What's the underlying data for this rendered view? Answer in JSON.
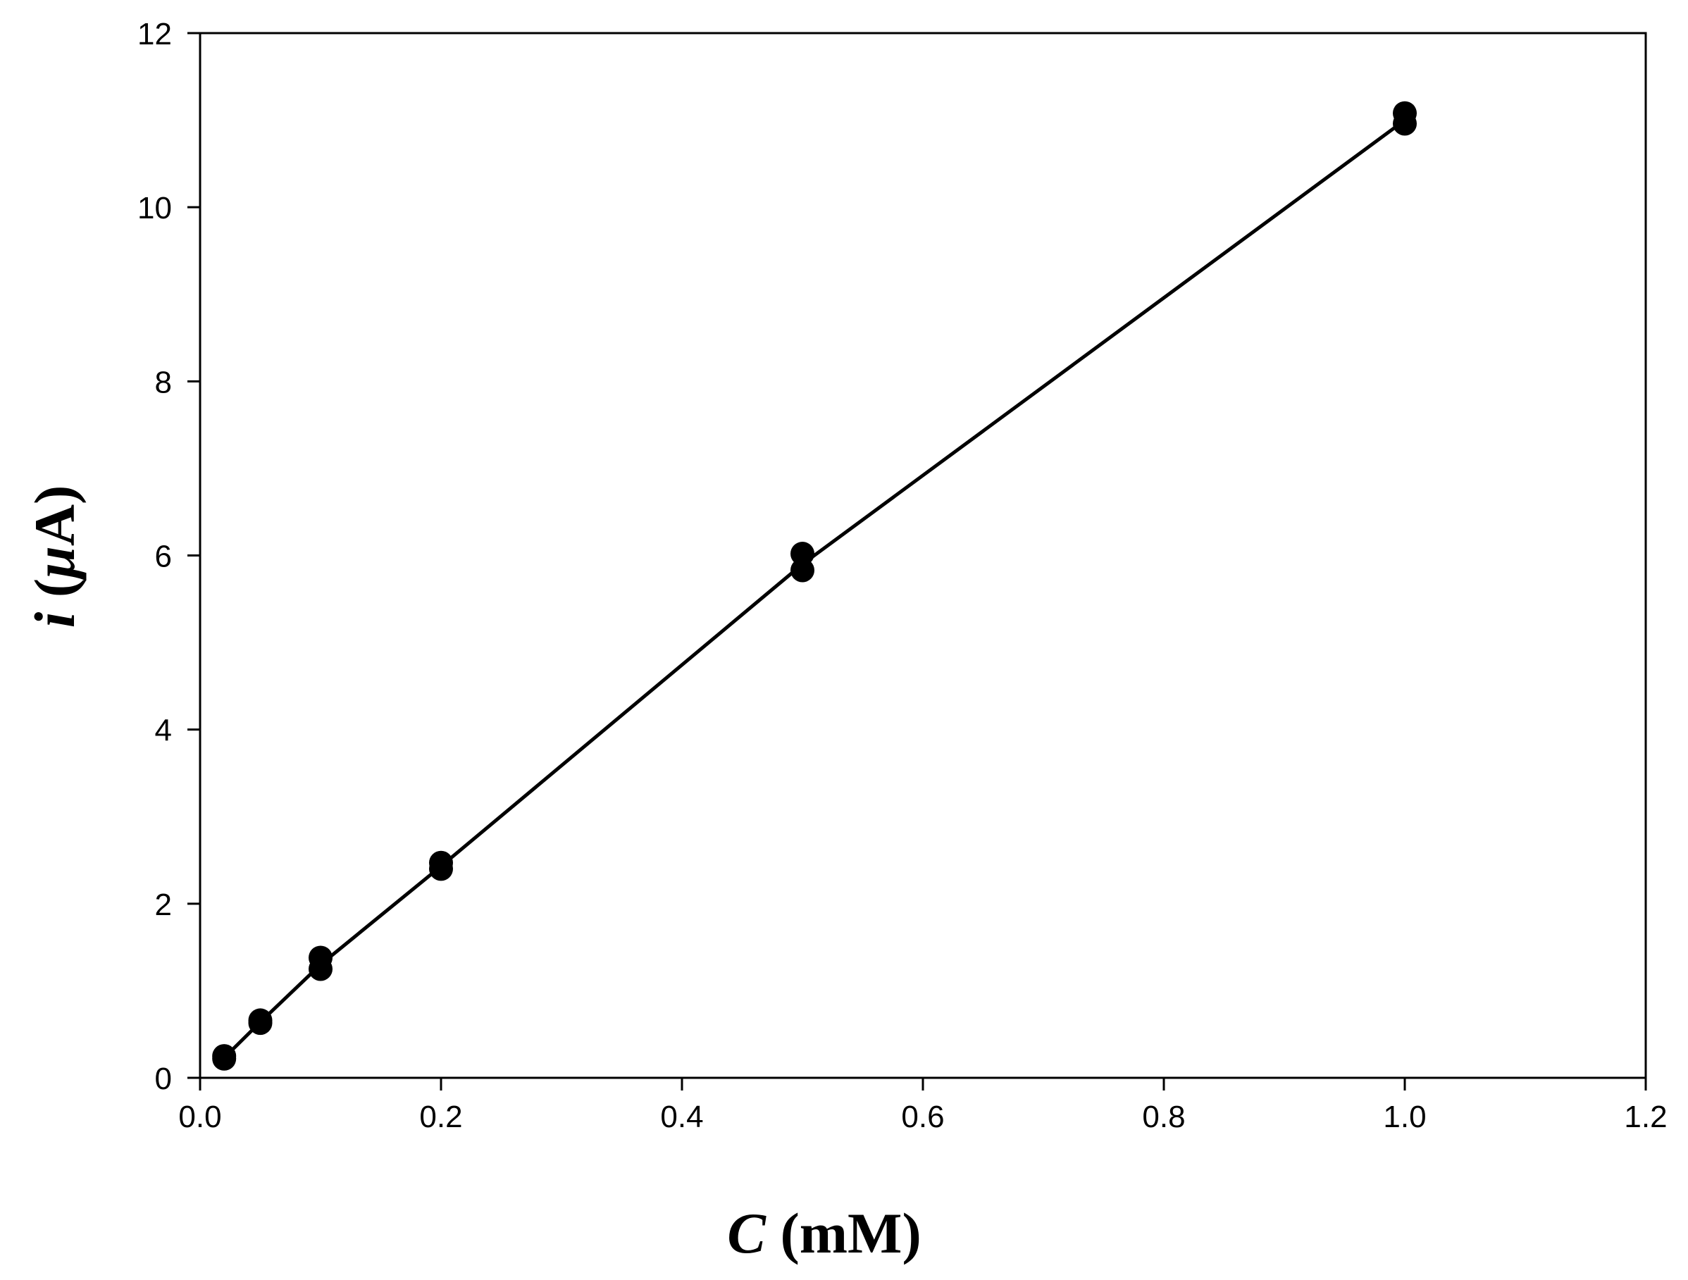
{
  "chart_data": {
    "type": "scatter",
    "xlabel": {
      "symbol": "C",
      "unit": " (mM)"
    },
    "ylabel": {
      "symbol": "i",
      "unit_open": " (",
      "unit_mu": "μ",
      "unit_close": "A)"
    },
    "xlim": [
      0,
      1.2
    ],
    "ylim": [
      0,
      12
    ],
    "x_ticks": [
      0.0,
      0.2,
      0.4,
      0.6,
      0.8,
      1.0,
      1.2
    ],
    "x_tick_labels": [
      "0.0",
      "0.2",
      "0.4",
      "0.6",
      "0.8",
      "1.0",
      "1.2"
    ],
    "y_ticks": [
      0,
      2,
      4,
      6,
      8,
      10,
      12
    ],
    "y_tick_labels": [
      "0",
      "2",
      "4",
      "6",
      "8",
      "10",
      "12"
    ],
    "grid": false,
    "legend": "none",
    "marker_color": "#000000",
    "series": [
      {
        "points": [
          [
            0.02,
            0.25
          ],
          [
            0.02,
            0.22
          ],
          [
            0.05,
            0.66
          ],
          [
            0.05,
            0.63
          ],
          [
            0.1,
            1.38
          ],
          [
            0.1,
            1.25
          ],
          [
            0.2,
            2.47
          ],
          [
            0.2,
            2.4
          ],
          [
            0.5,
            6.02
          ],
          [
            0.5,
            5.83
          ],
          [
            1.0,
            11.08
          ],
          [
            1.0,
            10.96
          ]
        ],
        "line": [
          [
            0.02,
            0.23
          ],
          [
            0.05,
            0.64
          ],
          [
            0.1,
            1.3
          ],
          [
            0.2,
            2.43
          ],
          [
            0.5,
            5.9
          ],
          [
            1.0,
            11.0
          ]
        ]
      }
    ]
  }
}
